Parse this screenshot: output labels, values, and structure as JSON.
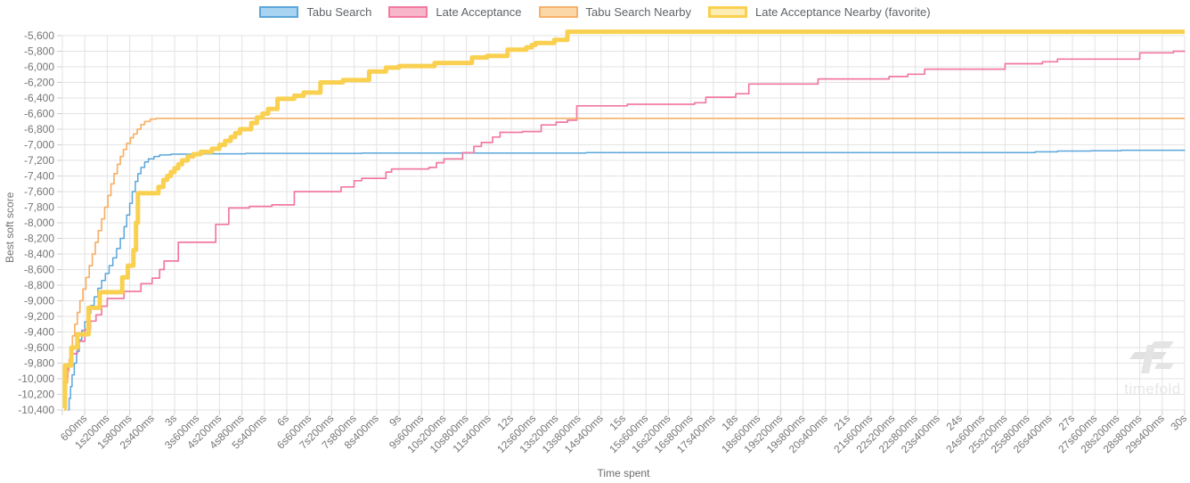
{
  "watermark": {
    "text": "timefold"
  },
  "chart_data": {
    "type": "line",
    "title": "",
    "xlabel": "Time spent",
    "ylabel": "Best soft score",
    "xlim_seconds": [
      0,
      30
    ],
    "ylim": [
      -10400,
      -5600
    ],
    "y_tick_step": 200,
    "grid": true,
    "legend_position": "top",
    "interpolation": "step-after",
    "x_tick_labels": [
      "600ms",
      "1s200ms",
      "1s800ms",
      "2s400ms",
      "3s",
      "3s600ms",
      "4s200ms",
      "4s800ms",
      "5s400ms",
      "6s",
      "6s600ms",
      "7s200ms",
      "7s800ms",
      "8s400ms",
      "9s",
      "9s600ms",
      "10s200ms",
      "10s800ms",
      "11s400ms",
      "12s",
      "12s600ms",
      "13s200ms",
      "13s800ms",
      "14s400ms",
      "15s",
      "15s600ms",
      "16s200ms",
      "16s800ms",
      "17s400ms",
      "18s",
      "18s600ms",
      "19s200ms",
      "19s800ms",
      "20s400ms",
      "21s",
      "21s600ms",
      "22s200ms",
      "22s800ms",
      "23s400ms",
      "24s",
      "24s600ms",
      "25s200ms",
      "25s800ms",
      "26s400ms",
      "27s",
      "27s600ms",
      "28s200ms",
      "28s800ms",
      "29s400ms",
      "30s"
    ],
    "y_tick_labels": [
      "-5,600",
      "-5,800",
      "-6,000",
      "-6,200",
      "-6,400",
      "-6,600",
      "-6,800",
      "-7,000",
      "-7,200",
      "-7,400",
      "-7,600",
      "-7,800",
      "-8,000",
      "-8,200",
      "-8,400",
      "-8,600",
      "-8,800",
      "-9,000",
      "-9,200",
      "-9,400",
      "-9,600",
      "-9,800",
      "-10,000",
      "-10,200",
      "-10,400"
    ],
    "colors": {
      "grid": "#e3e3e3",
      "tick": "#cfcfcf",
      "tick_text": "#757575"
    },
    "series": [
      {
        "name": "Tabu Search",
        "color": "#5aa6da",
        "fill": "#a8d4f2",
        "line_width": 1.5,
        "points": [
          [
            0.15,
            -10400
          ],
          [
            0.18,
            -10250
          ],
          [
            0.22,
            -10100
          ],
          [
            0.26,
            -9950
          ],
          [
            0.32,
            -9800
          ],
          [
            0.38,
            -9650
          ],
          [
            0.45,
            -9500
          ],
          [
            0.52,
            -9380
          ],
          [
            0.6,
            -9270
          ],
          [
            0.68,
            -9160
          ],
          [
            0.76,
            -9060
          ],
          [
            0.85,
            -8950
          ],
          [
            0.95,
            -8840
          ],
          [
            1.05,
            -8740
          ],
          [
            1.15,
            -8650
          ],
          [
            1.25,
            -8550
          ],
          [
            1.35,
            -8450
          ],
          [
            1.45,
            -8330
          ],
          [
            1.55,
            -8200
          ],
          [
            1.65,
            -8050
          ],
          [
            1.72,
            -7900
          ],
          [
            1.8,
            -7750
          ],
          [
            1.87,
            -7600
          ],
          [
            1.95,
            -7470
          ],
          [
            2.02,
            -7370
          ],
          [
            2.1,
            -7290
          ],
          [
            2.2,
            -7220
          ],
          [
            2.3,
            -7180
          ],
          [
            2.45,
            -7150
          ],
          [
            2.6,
            -7130
          ],
          [
            2.9,
            -7120
          ],
          [
            3.5,
            -7115
          ],
          [
            4.9,
            -7110
          ],
          [
            8,
            -7105
          ],
          [
            14,
            -7100
          ],
          [
            26,
            -7090
          ],
          [
            26.6,
            -7080
          ],
          [
            27.5,
            -7075
          ],
          [
            28.3,
            -7070
          ],
          [
            30,
            -7065
          ]
        ]
      },
      {
        "name": "Late Acceptance",
        "color": "#f2799f",
        "fill": "#f7b6ca",
        "line_width": 1.7,
        "points": [
          [
            0.05,
            -10400
          ],
          [
            0.08,
            -10150
          ],
          [
            0.1,
            -9980
          ],
          [
            0.15,
            -9830
          ],
          [
            0.25,
            -9680
          ],
          [
            0.4,
            -9520
          ],
          [
            0.6,
            -9370
          ],
          [
            0.75,
            -9260
          ],
          [
            0.9,
            -9180
          ],
          [
            1.05,
            -9070
          ],
          [
            1.2,
            -8970
          ],
          [
            1.65,
            -8880
          ],
          [
            2.1,
            -8780
          ],
          [
            2.4,
            -8710
          ],
          [
            2.6,
            -8600
          ],
          [
            2.72,
            -8490
          ],
          [
            3.1,
            -8250
          ],
          [
            4.1,
            -8020
          ],
          [
            4.45,
            -7810
          ],
          [
            5.0,
            -7790
          ],
          [
            5.6,
            -7770
          ],
          [
            6.2,
            -7600
          ],
          [
            7.45,
            -7540
          ],
          [
            7.8,
            -7460
          ],
          [
            8.0,
            -7430
          ],
          [
            8.65,
            -7350
          ],
          [
            8.8,
            -7310
          ],
          [
            9.8,
            -7290
          ],
          [
            10.0,
            -7230
          ],
          [
            10.2,
            -7180
          ],
          [
            10.7,
            -7100
          ],
          [
            11.0,
            -7020
          ],
          [
            11.2,
            -6970
          ],
          [
            11.5,
            -6900
          ],
          [
            11.7,
            -6840
          ],
          [
            12.3,
            -6830
          ],
          [
            12.8,
            -6745
          ],
          [
            13.2,
            -6710
          ],
          [
            13.5,
            -6685
          ],
          [
            13.75,
            -6500
          ],
          [
            15.1,
            -6480
          ],
          [
            16.9,
            -6460
          ],
          [
            17.2,
            -6390
          ],
          [
            18.0,
            -6345
          ],
          [
            18.35,
            -6220
          ],
          [
            20.2,
            -6155
          ],
          [
            22.1,
            -6125
          ],
          [
            22.6,
            -6095
          ],
          [
            23.05,
            -6030
          ],
          [
            25.2,
            -5960
          ],
          [
            26.2,
            -5935
          ],
          [
            26.6,
            -5900
          ],
          [
            28.8,
            -5820
          ],
          [
            29.7,
            -5800
          ],
          [
            30,
            -5795
          ]
        ]
      },
      {
        "name": "Tabu Search Nearby",
        "color": "#f7b169",
        "fill": "#fbd7a8",
        "line_width": 1.7,
        "points": [
          [
            0.05,
            -10400
          ],
          [
            0.08,
            -10200
          ],
          [
            0.11,
            -10050
          ],
          [
            0.14,
            -9900
          ],
          [
            0.18,
            -9750
          ],
          [
            0.22,
            -9600
          ],
          [
            0.27,
            -9450
          ],
          [
            0.33,
            -9300
          ],
          [
            0.4,
            -9150
          ],
          [
            0.47,
            -9000
          ],
          [
            0.55,
            -8850
          ],
          [
            0.63,
            -8700
          ],
          [
            0.72,
            -8550
          ],
          [
            0.8,
            -8400
          ],
          [
            0.88,
            -8250
          ],
          [
            0.96,
            -8100
          ],
          [
            1.05,
            -7950
          ],
          [
            1.13,
            -7800
          ],
          [
            1.22,
            -7650
          ],
          [
            1.3,
            -7500
          ],
          [
            1.38,
            -7370
          ],
          [
            1.47,
            -7250
          ],
          [
            1.55,
            -7150
          ],
          [
            1.63,
            -7060
          ],
          [
            1.72,
            -6980
          ],
          [
            1.82,
            -6910
          ],
          [
            1.9,
            -6860
          ],
          [
            2.0,
            -6800
          ],
          [
            2.1,
            -6740
          ],
          [
            2.2,
            -6700
          ],
          [
            2.35,
            -6670
          ],
          [
            2.5,
            -6660
          ],
          [
            30,
            -6660
          ]
        ]
      },
      {
        "name": "Late Acceptance Nearby (favorite)",
        "color": "#f9d050",
        "fill": "#fdedb3",
        "line_width": 5,
        "points": [
          [
            0.05,
            -10380
          ],
          [
            0.07,
            -9830
          ],
          [
            0.24,
            -9600
          ],
          [
            0.4,
            -9430
          ],
          [
            0.7,
            -9090
          ],
          [
            1.0,
            -8890
          ],
          [
            1.6,
            -8700
          ],
          [
            1.75,
            -8550
          ],
          [
            1.9,
            -8350
          ],
          [
            1.97,
            -8000
          ],
          [
            2.02,
            -7620
          ],
          [
            2.57,
            -7540
          ],
          [
            2.7,
            -7450
          ],
          [
            2.8,
            -7400
          ],
          [
            2.9,
            -7350
          ],
          [
            3.0,
            -7300
          ],
          [
            3.1,
            -7250
          ],
          [
            3.2,
            -7200
          ],
          [
            3.35,
            -7150
          ],
          [
            3.5,
            -7120
          ],
          [
            3.7,
            -7090
          ],
          [
            4.0,
            -7050
          ],
          [
            4.2,
            -7000
          ],
          [
            4.35,
            -6950
          ],
          [
            4.5,
            -6900
          ],
          [
            4.62,
            -6850
          ],
          [
            4.75,
            -6800
          ],
          [
            5.05,
            -6720
          ],
          [
            5.2,
            -6650
          ],
          [
            5.35,
            -6600
          ],
          [
            5.5,
            -6540
          ],
          [
            5.75,
            -6410
          ],
          [
            6.2,
            -6370
          ],
          [
            6.45,
            -6330
          ],
          [
            6.9,
            -6200
          ],
          [
            7.5,
            -6170
          ],
          [
            8.2,
            -6060
          ],
          [
            8.65,
            -6010
          ],
          [
            9.0,
            -5990
          ],
          [
            9.95,
            -5950
          ],
          [
            10.95,
            -5880
          ],
          [
            11.35,
            -5860
          ],
          [
            11.9,
            -5780
          ],
          [
            12.4,
            -5750
          ],
          [
            12.55,
            -5720
          ],
          [
            12.65,
            -5695
          ],
          [
            13.15,
            -5655
          ],
          [
            13.5,
            -5550
          ],
          [
            30,
            -5550
          ]
        ]
      }
    ]
  }
}
